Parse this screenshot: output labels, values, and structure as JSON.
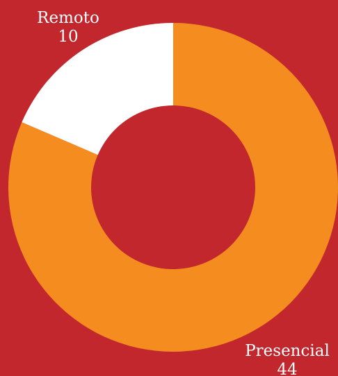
{
  "chart_data": {
    "type": "pie",
    "subtype": "donut",
    "title": "",
    "categories": [
      "Presencial",
      "Remoto"
    ],
    "values": [
      44,
      10
    ],
    "colors": {
      "Presencial": "#f48c20",
      "Remoto": "#ffffff",
      "background": "#c1272d",
      "hole": "#c1272d"
    },
    "labels": {
      "presencial": {
        "name": "Presencial",
        "value": "44"
      },
      "remoto": {
        "name": "Remoto",
        "value": "10"
      }
    }
  }
}
